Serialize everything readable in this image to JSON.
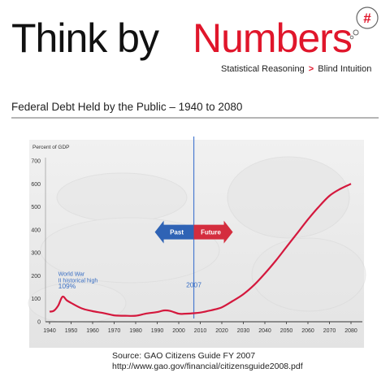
{
  "brand": {
    "think": "Think by",
    "numbers": "Numbers",
    "bubble_symbol": "#",
    "tagline_left": "Statistical Reasoning",
    "tagline_sep": ">",
    "tagline_right": "Blind Intuition",
    "accent_color": "#e0162b"
  },
  "figure_title": "Federal Debt Held by the Public – 1940 to 2080",
  "chart_data": {
    "type": "line",
    "title": "Federal Debt Held by the Public – 1940 to 2080",
    "xlabel": "",
    "ylabel": "Percent of GDP",
    "xlim": [
      1940,
      2080
    ],
    "ylim": [
      0,
      700
    ],
    "x_ticks": [
      "1940",
      "1950",
      "1960",
      "1970",
      "1980",
      "1990",
      "2000",
      "2010",
      "2020",
      "2030",
      "2040",
      "2050",
      "2060",
      "2070",
      "2080"
    ],
    "y_ticks": [
      "0",
      "100",
      "200",
      "300",
      "400",
      "500",
      "600",
      "700"
    ],
    "grid": false,
    "line_color": "#d4183d",
    "series": [
      {
        "name": "",
        "x": [
          1940,
          1942,
          1944,
          1946,
          1948,
          1950,
          1955,
          1960,
          1965,
          1970,
          1975,
          1980,
          1985,
          1990,
          1993,
          1996,
          2000,
          2003,
          2007,
          2010,
          2015,
          2020,
          2025,
          2030,
          2035,
          2040,
          2045,
          2050,
          2055,
          2060,
          2065,
          2070,
          2075,
          2080
        ],
        "y": [
          44,
          48,
          70,
          109,
          93,
          82,
          58,
          46,
          38,
          28,
          26,
          26,
          36,
          42,
          49,
          47,
          35,
          35,
          37,
          40,
          50,
          63,
          90,
          120,
          160,
          210,
          265,
          325,
          385,
          445,
          500,
          548,
          578,
          600
        ]
      }
    ],
    "annotations": [
      {
        "text": "World War II historical high",
        "value_label": "109%",
        "x": 1946,
        "y": 109
      },
      {
        "text": "2007",
        "x": 2007,
        "y": 37
      }
    ],
    "arrow_labels": {
      "left": "Past",
      "right": "Future"
    }
  },
  "source": {
    "line1": "Source: GAO Citizens Guide FY 2007",
    "line2": "http://www.gao.gov/financial/citizensguide2008.pdf"
  }
}
